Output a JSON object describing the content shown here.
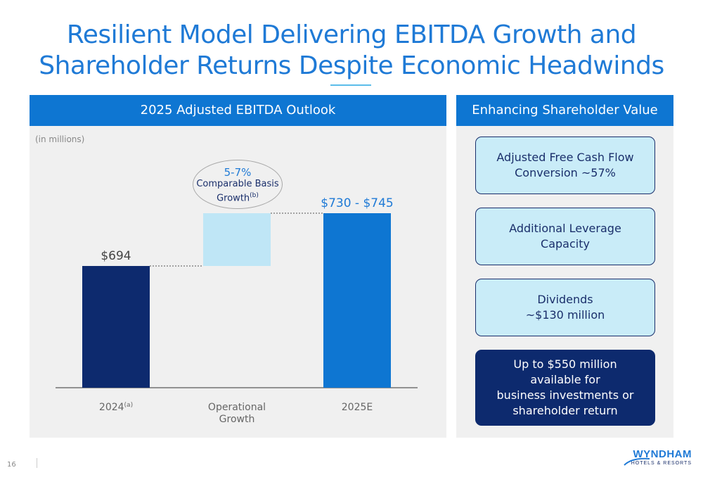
{
  "title": {
    "line1": "Resilient Model Delivering EBITDA Growth and",
    "line2": "Shareholder Returns Despite Economic Headwinds"
  },
  "left_panel": {
    "header": "2025 Adjusted EBITDA Outlook",
    "units": "(in millions)",
    "callout": {
      "pct": "5-7%",
      "desc_line1": "Comparable Basis",
      "desc_line2": "Growth",
      "footnote": "(b)"
    }
  },
  "right_panel": {
    "header": "Enhancing Shareholder Value",
    "boxes": [
      {
        "line1": "Adjusted Free Cash Flow",
        "line2": "Conversion ~57%"
      },
      {
        "line1": "Additional Leverage",
        "line2": "Capacity"
      },
      {
        "line1": "Dividends",
        "line2": "~$130 million"
      },
      {
        "line1": "Up to $550 million",
        "line2": "available for",
        "line3": "business investments or",
        "line4": "shareholder return"
      }
    ]
  },
  "footer": {
    "page_number": "16",
    "logo_word": "WYNDHAM",
    "logo_sub": "HOTELS & RESORTS"
  },
  "colors": {
    "title": "#1f7ad6",
    "bar_2024": "#0d2a6e",
    "bar_growth": "#bfe6f6",
    "bar_2025": "#0e76d2",
    "box_light": "#c9ecf8",
    "box_dark": "#0d2a6e"
  },
  "chart_data": {
    "type": "bar",
    "subtype": "waterfall",
    "categories": [
      "2024",
      "Operational\nGrowth",
      "2025E"
    ],
    "category_footnotes": [
      "(a)",
      "",
      ""
    ],
    "values": [
      {
        "base": 0,
        "top": 694
      },
      {
        "base": 694,
        "top": 737.5
      },
      {
        "base": 0,
        "top": 737.5
      }
    ],
    "data_labels": [
      "$694",
      "",
      "$730 - $745"
    ],
    "ylim": [
      0,
      800
    ],
    "grid": false
  }
}
